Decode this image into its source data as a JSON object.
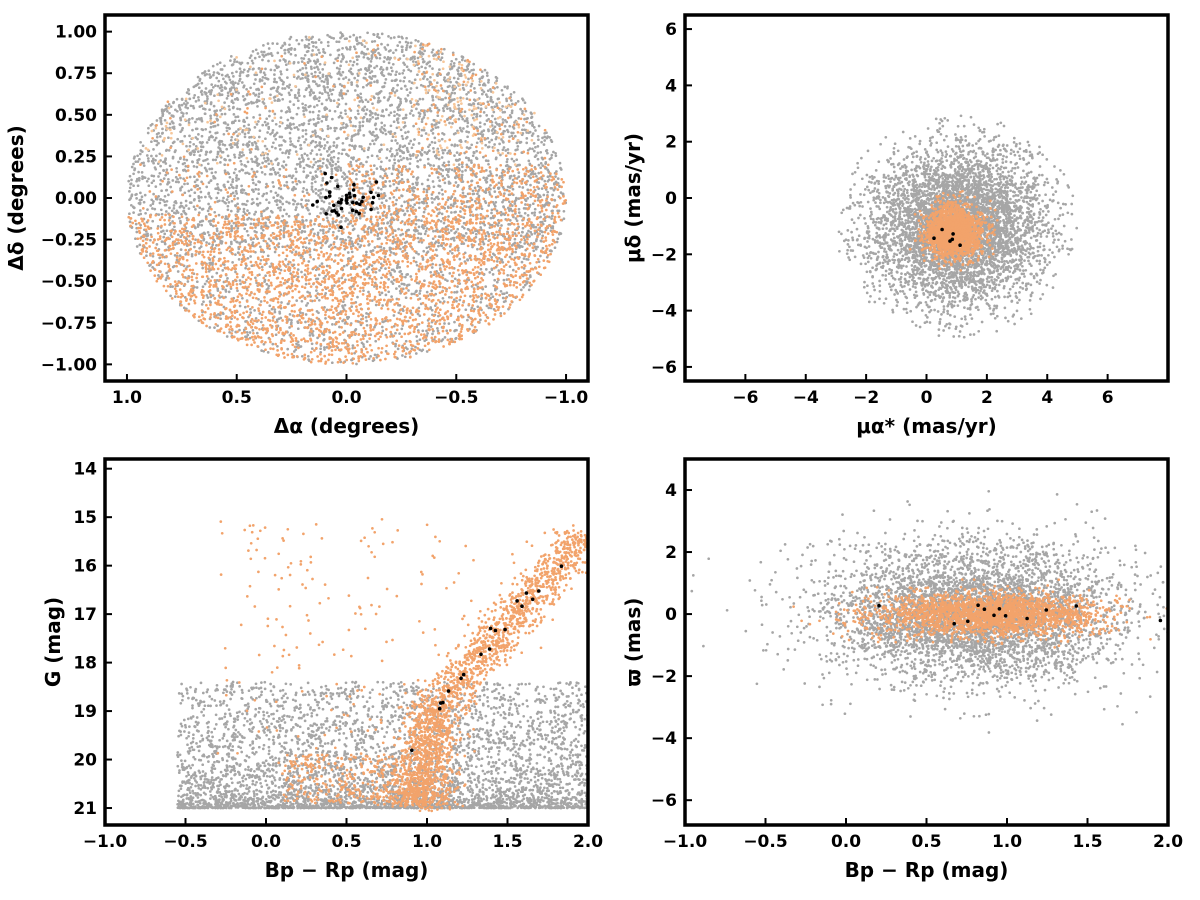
{
  "colors": {
    "field": "#a6a6a6",
    "member": "#f2a36b",
    "member_light": "#f7c79a",
    "core": "#000000",
    "axes": "#000000"
  },
  "chart_data": [
    {
      "id": "sky",
      "type": "scatter",
      "xlabel": "Δα (degrees)",
      "ylabel": "Δδ (degrees)",
      "xlim": [
        1.1,
        -1.1
      ],
      "ylim": [
        -1.1,
        1.1
      ],
      "xticks": [
        "1.0",
        "0.5",
        "0.0",
        "−0.5",
        "−1.0"
      ],
      "xtick_values": [
        1.0,
        0.5,
        0.0,
        -0.5,
        -1.0
      ],
      "yticks": [
        "1.00",
        "0.75",
        "0.50",
        "0.25",
        "0.00",
        "−0.25",
        "−0.50",
        "−0.75",
        "−1.00"
      ],
      "ytick_values": [
        1.0,
        0.75,
        0.5,
        0.25,
        0.0,
        -0.25,
        -0.5,
        -0.75,
        -1.0
      ],
      "series": [
        {
          "role": "field",
          "distribution": "uniform disk radius 1.0 deg, densest in upper half",
          "count": 5200
        },
        {
          "role": "member",
          "distribution": "concentrated in lower half (Δδ < 0) plus lighter patches at upper right and left",
          "count": 3200
        },
        {
          "role": "core",
          "distribution": "tight clump near (0.0, 0.0)",
          "count": 45
        }
      ]
    },
    {
      "id": "proper-motion",
      "type": "scatter",
      "xlabel": "μα* (mas/yr)",
      "ylabel": "μδ (mas/yr)",
      "xlim": [
        -8,
        8
      ],
      "ylim": [
        -6.5,
        6.5
      ],
      "xticks": [
        "−6",
        "−4",
        "−2",
        "0",
        "2",
        "4",
        "6"
      ],
      "xtick_values": [
        -6,
        -4,
        -2,
        0,
        2,
        4,
        6
      ],
      "yticks": [
        "6",
        "4",
        "2",
        "0",
        "−2",
        "−4",
        "−6"
      ],
      "ytick_values": [
        6,
        4,
        2,
        0,
        -2,
        -4,
        -6
      ],
      "series": [
        {
          "role": "field",
          "center": [
            1.0,
            -1.0
          ],
          "spread": [
            1.5,
            1.4
          ],
          "limit_radius": 4.0,
          "count": 5000
        },
        {
          "role": "member",
          "center": [
            0.9,
            -1.2
          ],
          "spread": [
            0.45,
            0.45
          ],
          "count": 1800
        },
        {
          "role": "core",
          "center": [
            0.7,
            -1.5
          ],
          "spread": [
            0.2,
            0.2
          ],
          "count": 6
        }
      ]
    },
    {
      "id": "cmd",
      "type": "scatter",
      "xlabel": "Bp − Rp (mag)",
      "ylabel": "G (mag)",
      "xlim": [
        -1.0,
        2.0
      ],
      "ylim": [
        21.35,
        13.8
      ],
      "xticks": [
        "−1.0",
        "−0.5",
        "0.0",
        "0.5",
        "1.0",
        "1.5",
        "2.0"
      ],
      "xtick_values": [
        -1.0,
        -0.5,
        0.0,
        0.5,
        1.0,
        1.5,
        2.0
      ],
      "yticks": [
        "21",
        "20",
        "19",
        "18",
        "17",
        "16",
        "15",
        "14"
      ],
      "ytick_values": [
        21,
        20,
        19,
        18,
        17,
        16,
        15,
        14
      ],
      "series": [
        {
          "role": "field",
          "distribution": "broad band G 18.5–21, BpRp −0.5–2.0",
          "count": 4200
        },
        {
          "role": "member",
          "distribution": "sequence from (1.0, 19.5) to (1.9, 15.3), faint blue tail",
          "count": 2600
        },
        {
          "role": "core",
          "distribution": "scattered along sequence",
          "count": 18
        }
      ]
    },
    {
      "id": "parallax",
      "type": "scatter",
      "xlabel": "Bp − Rp (mag)",
      "ylabel": "ϖ (mas)",
      "xlim": [
        -1.0,
        2.0
      ],
      "ylim": [
        -6.8,
        5.0
      ],
      "xticks": [
        "−1.0",
        "−0.5",
        "0.0",
        "0.5",
        "1.0",
        "1.5",
        "2.0"
      ],
      "xtick_values": [
        -1.0,
        -0.5,
        0.0,
        0.5,
        1.0,
        1.5,
        2.0
      ],
      "yticks": [
        "4",
        "2",
        "0",
        "−2",
        "−4",
        "−6"
      ],
      "ytick_values": [
        4,
        2,
        0,
        -2,
        -4,
        -6
      ],
      "series": [
        {
          "role": "field",
          "center": [
            0.8,
            0.0
          ],
          "spread": [
            0.45,
            1.1
          ],
          "count": 4500
        },
        {
          "role": "member",
          "center": [
            0.9,
            0.0
          ],
          "spread": [
            0.35,
            0.35
          ],
          "count": 2200
        },
        {
          "role": "core",
          "center": [
            0.9,
            0.0
          ],
          "spread": [
            0.4,
            0.3
          ],
          "count": 12
        }
      ]
    }
  ]
}
